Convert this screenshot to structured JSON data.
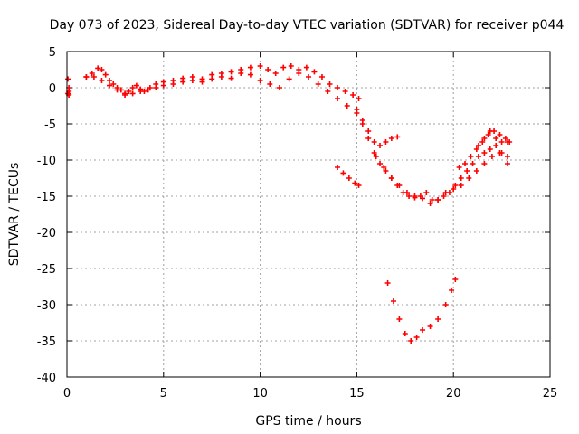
{
  "chart_data": {
    "type": "scatter",
    "title": "Day 073 of 2023, Sidereal Day-to-day VTEC variation (SDTVAR) for receiver p044",
    "xlabel": "GPS time / hours",
    "ylabel": "SDTVAR / TECUs",
    "xlim": [
      0,
      25
    ],
    "ylim": [
      -40,
      5
    ],
    "xticks": [
      0,
      5,
      10,
      15,
      20,
      25
    ],
    "yticks": [
      5,
      0,
      -5,
      -10,
      -15,
      -20,
      -25,
      -30,
      -35,
      -40
    ],
    "grid": true,
    "marker": "+",
    "color": "#ff0000",
    "series": [
      {
        "x": [
          0.05,
          0.1,
          0.1,
          0.1,
          0.05
        ],
        "y": [
          1.2,
          0.0,
          -0.5,
          -1.0,
          -0.8
        ]
      },
      {
        "x": [
          1.0,
          1.3,
          1.6,
          1.8,
          2.0,
          2.2,
          2.4,
          2.6,
          2.8,
          3.0,
          3.2,
          3.4,
          3.6,
          3.8,
          4.0,
          4.3,
          4.6,
          5.0,
          5.5,
          6.0,
          6.5,
          7.0,
          7.5,
          8.0,
          8.5,
          9.0,
          9.5,
          10.0,
          10.4,
          10.8,
          11.2,
          11.6,
          12.0,
          12.4,
          12.8,
          13.2,
          13.6,
          14.0,
          14.4,
          14.8,
          15.1
        ],
        "y": [
          1.5,
          2.0,
          2.7,
          2.5,
          1.8,
          1.0,
          0.5,
          0.0,
          -0.3,
          -0.8,
          -0.5,
          0.0,
          0.3,
          -0.2,
          -0.5,
          0.0,
          0.5,
          0.8,
          1.0,
          1.3,
          1.5,
          1.2,
          1.8,
          2.0,
          2.2,
          2.5,
          2.8,
          3.0,
          2.5,
          2.0,
          2.8,
          3.0,
          2.5,
          2.8,
          2.2,
          1.5,
          0.5,
          0.0,
          -0.5,
          -1.0,
          -1.5
        ]
      },
      {
        "x": [
          1.0,
          1.4,
          1.8,
          2.2,
          2.6,
          3.0,
          3.4,
          3.8,
          4.2,
          4.6,
          5.0,
          5.5,
          6.0,
          6.5,
          7.0,
          7.5,
          8.0,
          8.5,
          9.0,
          9.5,
          10.0,
          10.5,
          11.0,
          11.5,
          12.0,
          12.5,
          13.0,
          13.5,
          14.0,
          14.5,
          15.0
        ],
        "y": [
          1.5,
          1.5,
          1.0,
          0.3,
          -0.3,
          -1.0,
          -0.8,
          -0.5,
          -0.3,
          0.0,
          0.3,
          0.5,
          0.8,
          1.0,
          0.8,
          1.2,
          1.5,
          1.3,
          2.0,
          1.8,
          1.0,
          0.5,
          0.0,
          1.2,
          2.0,
          1.5,
          0.5,
          -0.5,
          -1.5,
          -2.5,
          -3.5
        ]
      },
      {
        "x": [
          15.0,
          15.3,
          15.6,
          15.9,
          16.2,
          16.5,
          16.8,
          17.1,
          17.4,
          17.7,
          18.0,
          18.3,
          18.6,
          18.9,
          19.2,
          19.5,
          19.8,
          20.1,
          20.4,
          20.7,
          21.0,
          21.3,
          21.6,
          21.9,
          22.2,
          22.5,
          22.8
        ],
        "y": [
          -3.0,
          -5.0,
          -7.0,
          -9.0,
          -10.5,
          -11.5,
          -12.5,
          -13.5,
          -14.5,
          -15.0,
          -15.2,
          -15.0,
          -14.5,
          -15.5,
          -15.5,
          -15.0,
          -14.5,
          -13.5,
          -12.5,
          -11.5,
          -10.5,
          -9.5,
          -9.0,
          -8.5,
          -8.0,
          -7.5,
          -7.5
        ]
      },
      {
        "x": [
          15.3,
          15.6,
          15.9,
          16.2,
          16.5,
          16.8,
          17.1
        ],
        "y": [
          -4.5,
          -6.0,
          -7.5,
          -8.0,
          -7.5,
          -7.0,
          -6.8
        ]
      },
      {
        "x": [
          16.0,
          16.4,
          16.8,
          17.2,
          17.6,
          18.0,
          18.4,
          18.8,
          19.2,
          19.6,
          20.0,
          20.4,
          20.8,
          21.2,
          21.6,
          22.0,
          22.4,
          22.8
        ],
        "y": [
          -9.5,
          -11.0,
          -12.5,
          -13.5,
          -14.5,
          -15.0,
          -15.3,
          -16.0,
          -15.5,
          -14.5,
          -14.0,
          -13.5,
          -12.5,
          -11.5,
          -10.5,
          -9.5,
          -9.0,
          -9.5
        ]
      },
      {
        "x": [
          20.3,
          20.6,
          20.9,
          21.2,
          21.5,
          21.8,
          22.1,
          22.4,
          22.7,
          22.9
        ],
        "y": [
          -11.0,
          -10.5,
          -9.5,
          -8.5,
          -7.5,
          -6.5,
          -6.0,
          -6.5,
          -7.0,
          -7.5
        ]
      },
      {
        "x": [
          21.3,
          21.6,
          21.9,
          22.2,
          22.5,
          22.8
        ],
        "y": [
          -8.0,
          -7.0,
          -6.0,
          -7.0,
          -9.0,
          -10.5
        ]
      },
      {
        "x": [
          14.0,
          14.3,
          14.6,
          14.9,
          15.1
        ],
        "y": [
          -11.0,
          -11.8,
          -12.5,
          -13.2,
          -13.5
        ]
      },
      {
        "x": [
          16.6,
          16.9,
          17.2,
          17.5,
          17.8,
          18.1,
          18.4,
          18.8,
          19.2,
          19.6,
          19.9,
          20.1
        ],
        "y": [
          -27.0,
          -29.5,
          -32.0,
          -34.0,
          -35.0,
          -34.5,
          -33.5,
          -33.0,
          -32.0,
          -30.0,
          -28.0,
          -26.5
        ]
      }
    ]
  }
}
